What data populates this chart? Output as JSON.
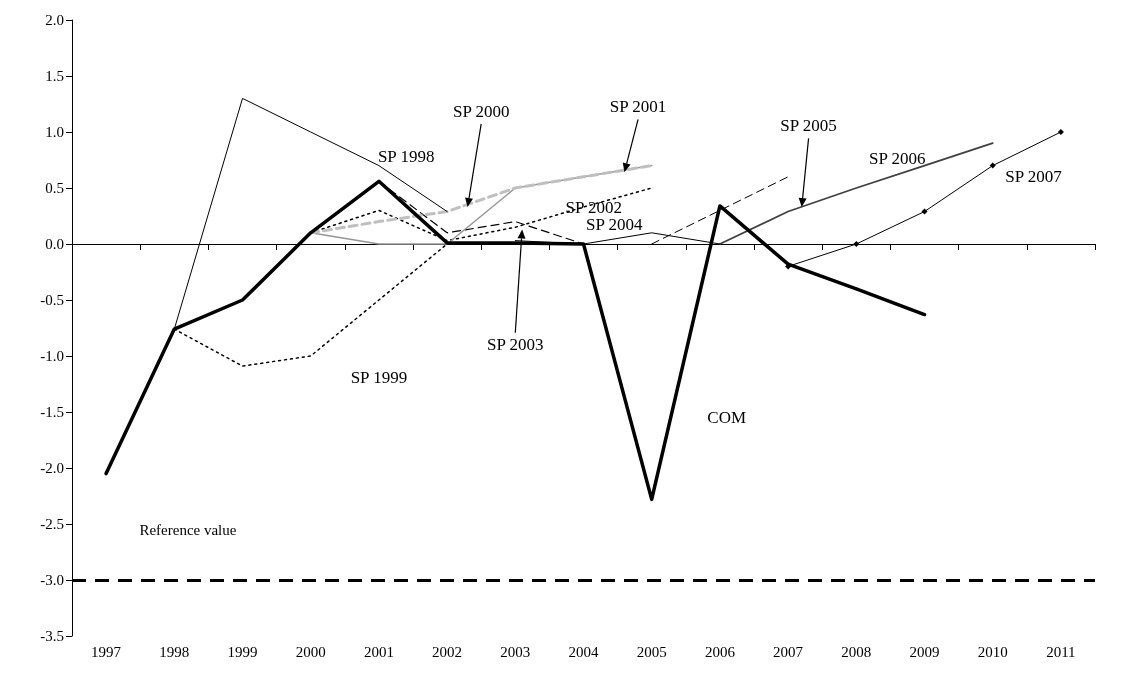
{
  "chart_data": {
    "type": "line",
    "categories": [
      "1997",
      "1998",
      "1999",
      "2000",
      "2001",
      "2002",
      "2003",
      "2004",
      "2005",
      "2006",
      "2007",
      "2008",
      "2009",
      "2010",
      "2011"
    ],
    "ylim": [
      -3.5,
      2.0
    ],
    "yticks": [
      {
        "value": -3.5,
        "label": "-3.5"
      },
      {
        "value": -3,
        "label": "-3.0"
      },
      {
        "value": -2.5,
        "label": "-2.5"
      },
      {
        "value": -2,
        "label": "-2.0"
      },
      {
        "value": -1.5,
        "label": "-1.5"
      },
      {
        "value": -1,
        "label": "-1.0"
      },
      {
        "value": -0.5,
        "label": "-0.5"
      },
      {
        "value": 0,
        "label": "0.0"
      },
      {
        "value": 0.5,
        "label": "0.5"
      },
      {
        "value": 1,
        "label": "1.0"
      },
      {
        "value": 1.5,
        "label": "1.5"
      },
      {
        "value": 2,
        "label": "2.0"
      }
    ],
    "grid": false,
    "legend": false,
    "marker": "none",
    "series": [
      {
        "name": "COM",
        "color": "#000000",
        "line_style": "solid",
        "values": [
          -2.05,
          -0.76,
          -0.5,
          0.1,
          0.56,
          0.01,
          0.01,
          0.0,
          -2.28,
          0.34,
          -0.18,
          -0.4,
          -0.63,
          null,
          null
        ]
      },
      {
        "name": "SP 1998",
        "color": "#000000",
        "line_style": "solid",
        "values": [
          null,
          -0.76,
          1.3,
          1.0,
          0.7,
          0.29,
          null,
          null,
          null,
          null,
          null,
          null,
          null,
          null,
          null
        ]
      },
      {
        "name": "SP 1999",
        "color": "#000000",
        "line_style": "dotted",
        "values": [
          null,
          -0.76,
          -1.09,
          -1.0,
          -0.5,
          0.0,
          null,
          null,
          null,
          null,
          null,
          null,
          null,
          null,
          null
        ]
      },
      {
        "name": "SP 2000",
        "color": "#bfbfbf",
        "line_style": "dashed",
        "values": [
          null,
          null,
          null,
          0.1,
          0.2,
          0.29,
          0.5,
          0.6,
          0.7,
          null,
          null,
          null,
          null,
          null,
          null
        ]
      },
      {
        "name": "SP 2001",
        "color": "#969696",
        "line_style": "solid",
        "values": [
          null,
          null,
          null,
          0.1,
          0.0,
          0.0,
          0.5,
          0.6,
          0.7,
          null,
          null,
          null,
          null,
          null,
          null
        ]
      },
      {
        "name": "SP 2002",
        "color": "#000000",
        "line_style": "dotted",
        "values": [
          null,
          null,
          null,
          0.1,
          0.3,
          0.03,
          0.15,
          0.33,
          0.5,
          null,
          null,
          null,
          null,
          null,
          null
        ]
      },
      {
        "name": "SP 2003",
        "color": "#000000",
        "line_style": "dashed",
        "values": [
          null,
          null,
          null,
          null,
          0.56,
          0.1,
          0.2,
          0.0,
          null,
          null,
          null,
          null,
          null,
          null,
          null
        ]
      },
      {
        "name": "SP 2004",
        "color": "#000000",
        "line_style": "solid",
        "values": [
          null,
          null,
          null,
          null,
          null,
          null,
          0.03,
          0.0,
          0.1,
          0.0,
          null,
          null,
          null,
          null,
          null
        ]
      },
      {
        "name": "SP 2005",
        "color": "#000000",
        "line_style": "dashed",
        "values": [
          null,
          null,
          null,
          null,
          null,
          null,
          null,
          null,
          0.0,
          0.3,
          0.6,
          null,
          null,
          null,
          null
        ]
      },
      {
        "name": "SP 2006",
        "color": "#404040",
        "line_style": "solid",
        "values": [
          null,
          null,
          null,
          null,
          null,
          null,
          null,
          null,
          null,
          0.0,
          0.29,
          0.5,
          0.7,
          0.9,
          null
        ]
      },
      {
        "name": "SP 2007",
        "color": "#000000",
        "line_style": "solid",
        "marker": "diamond",
        "values": [
          null,
          null,
          null,
          null,
          null,
          null,
          null,
          null,
          null,
          null,
          -0.2,
          0.0,
          0.29,
          0.7,
          1.0
        ]
      }
    ],
    "ref_lines": [
      {
        "axis": "y",
        "value": -3.0,
        "label": "Reference value",
        "color": "#000000",
        "line_style": "dashed"
      }
    ]
  }
}
